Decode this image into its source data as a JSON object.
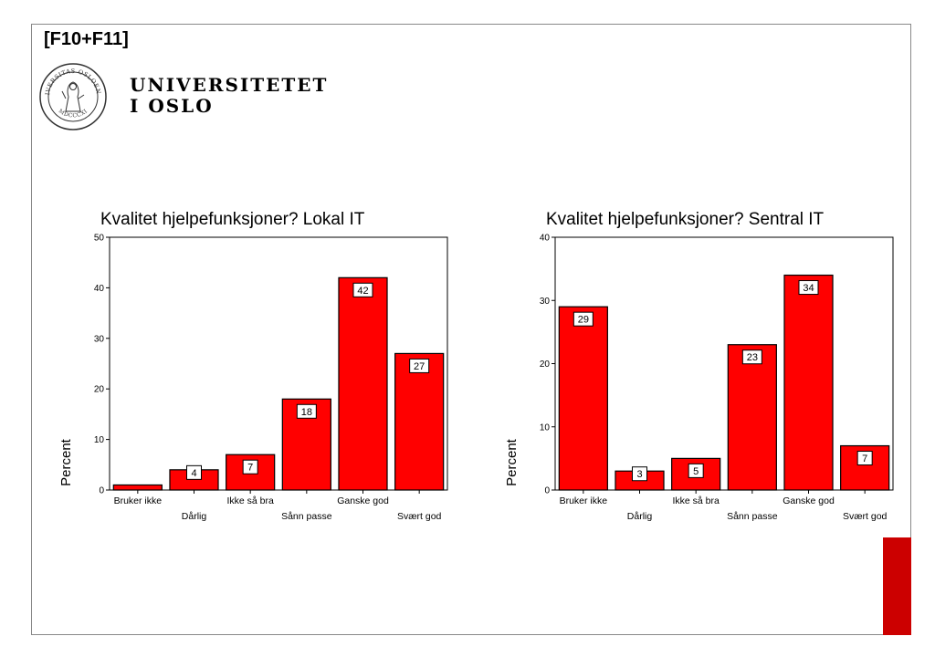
{
  "slide": {
    "code": "[F10+F11]",
    "university_line1": "UNIVERSITETET",
    "university_line2": "I OSLO",
    "seal_text": "UNIVERSITAS OSLOENSIS",
    "seal_year": "MDCCCXI"
  },
  "colors": {
    "bar": "#ff0000",
    "accent_tab": "#cc0000",
    "frame": "#888888"
  },
  "chart_data": [
    {
      "type": "bar",
      "title": "Kvalitet hjelpefunksjoner? Lokal IT",
      "xlabel": "",
      "ylabel": "Percent",
      "ylim": [
        0,
        50
      ],
      "yticks": [
        0,
        10,
        20,
        30,
        40,
        50
      ],
      "categories": [
        "Bruker ikke",
        "Dårlig",
        "Ikke så bra",
        "Sånn passe",
        "Ganske god",
        "Svært god"
      ],
      "values": [
        1,
        4,
        7,
        18,
        42,
        27
      ],
      "data_labels": [
        "",
        "4",
        "7",
        "18",
        "42",
        "27"
      ],
      "grid": false,
      "legend": "none"
    },
    {
      "type": "bar",
      "title": "Kvalitet hjelpefunksjoner? Sentral IT",
      "xlabel": "",
      "ylabel": "Percent",
      "ylim": [
        0,
        40
      ],
      "yticks": [
        0,
        10,
        20,
        30,
        40
      ],
      "categories": [
        "Bruker ikke",
        "Dårlig",
        "Ikke så bra",
        "Sånn passe",
        "Ganske god",
        "Svært god"
      ],
      "values": [
        29,
        3,
        5,
        23,
        34,
        7
      ],
      "data_labels": [
        "29",
        "3",
        "5",
        "23",
        "34",
        "7"
      ],
      "grid": false,
      "legend": "none"
    }
  ]
}
